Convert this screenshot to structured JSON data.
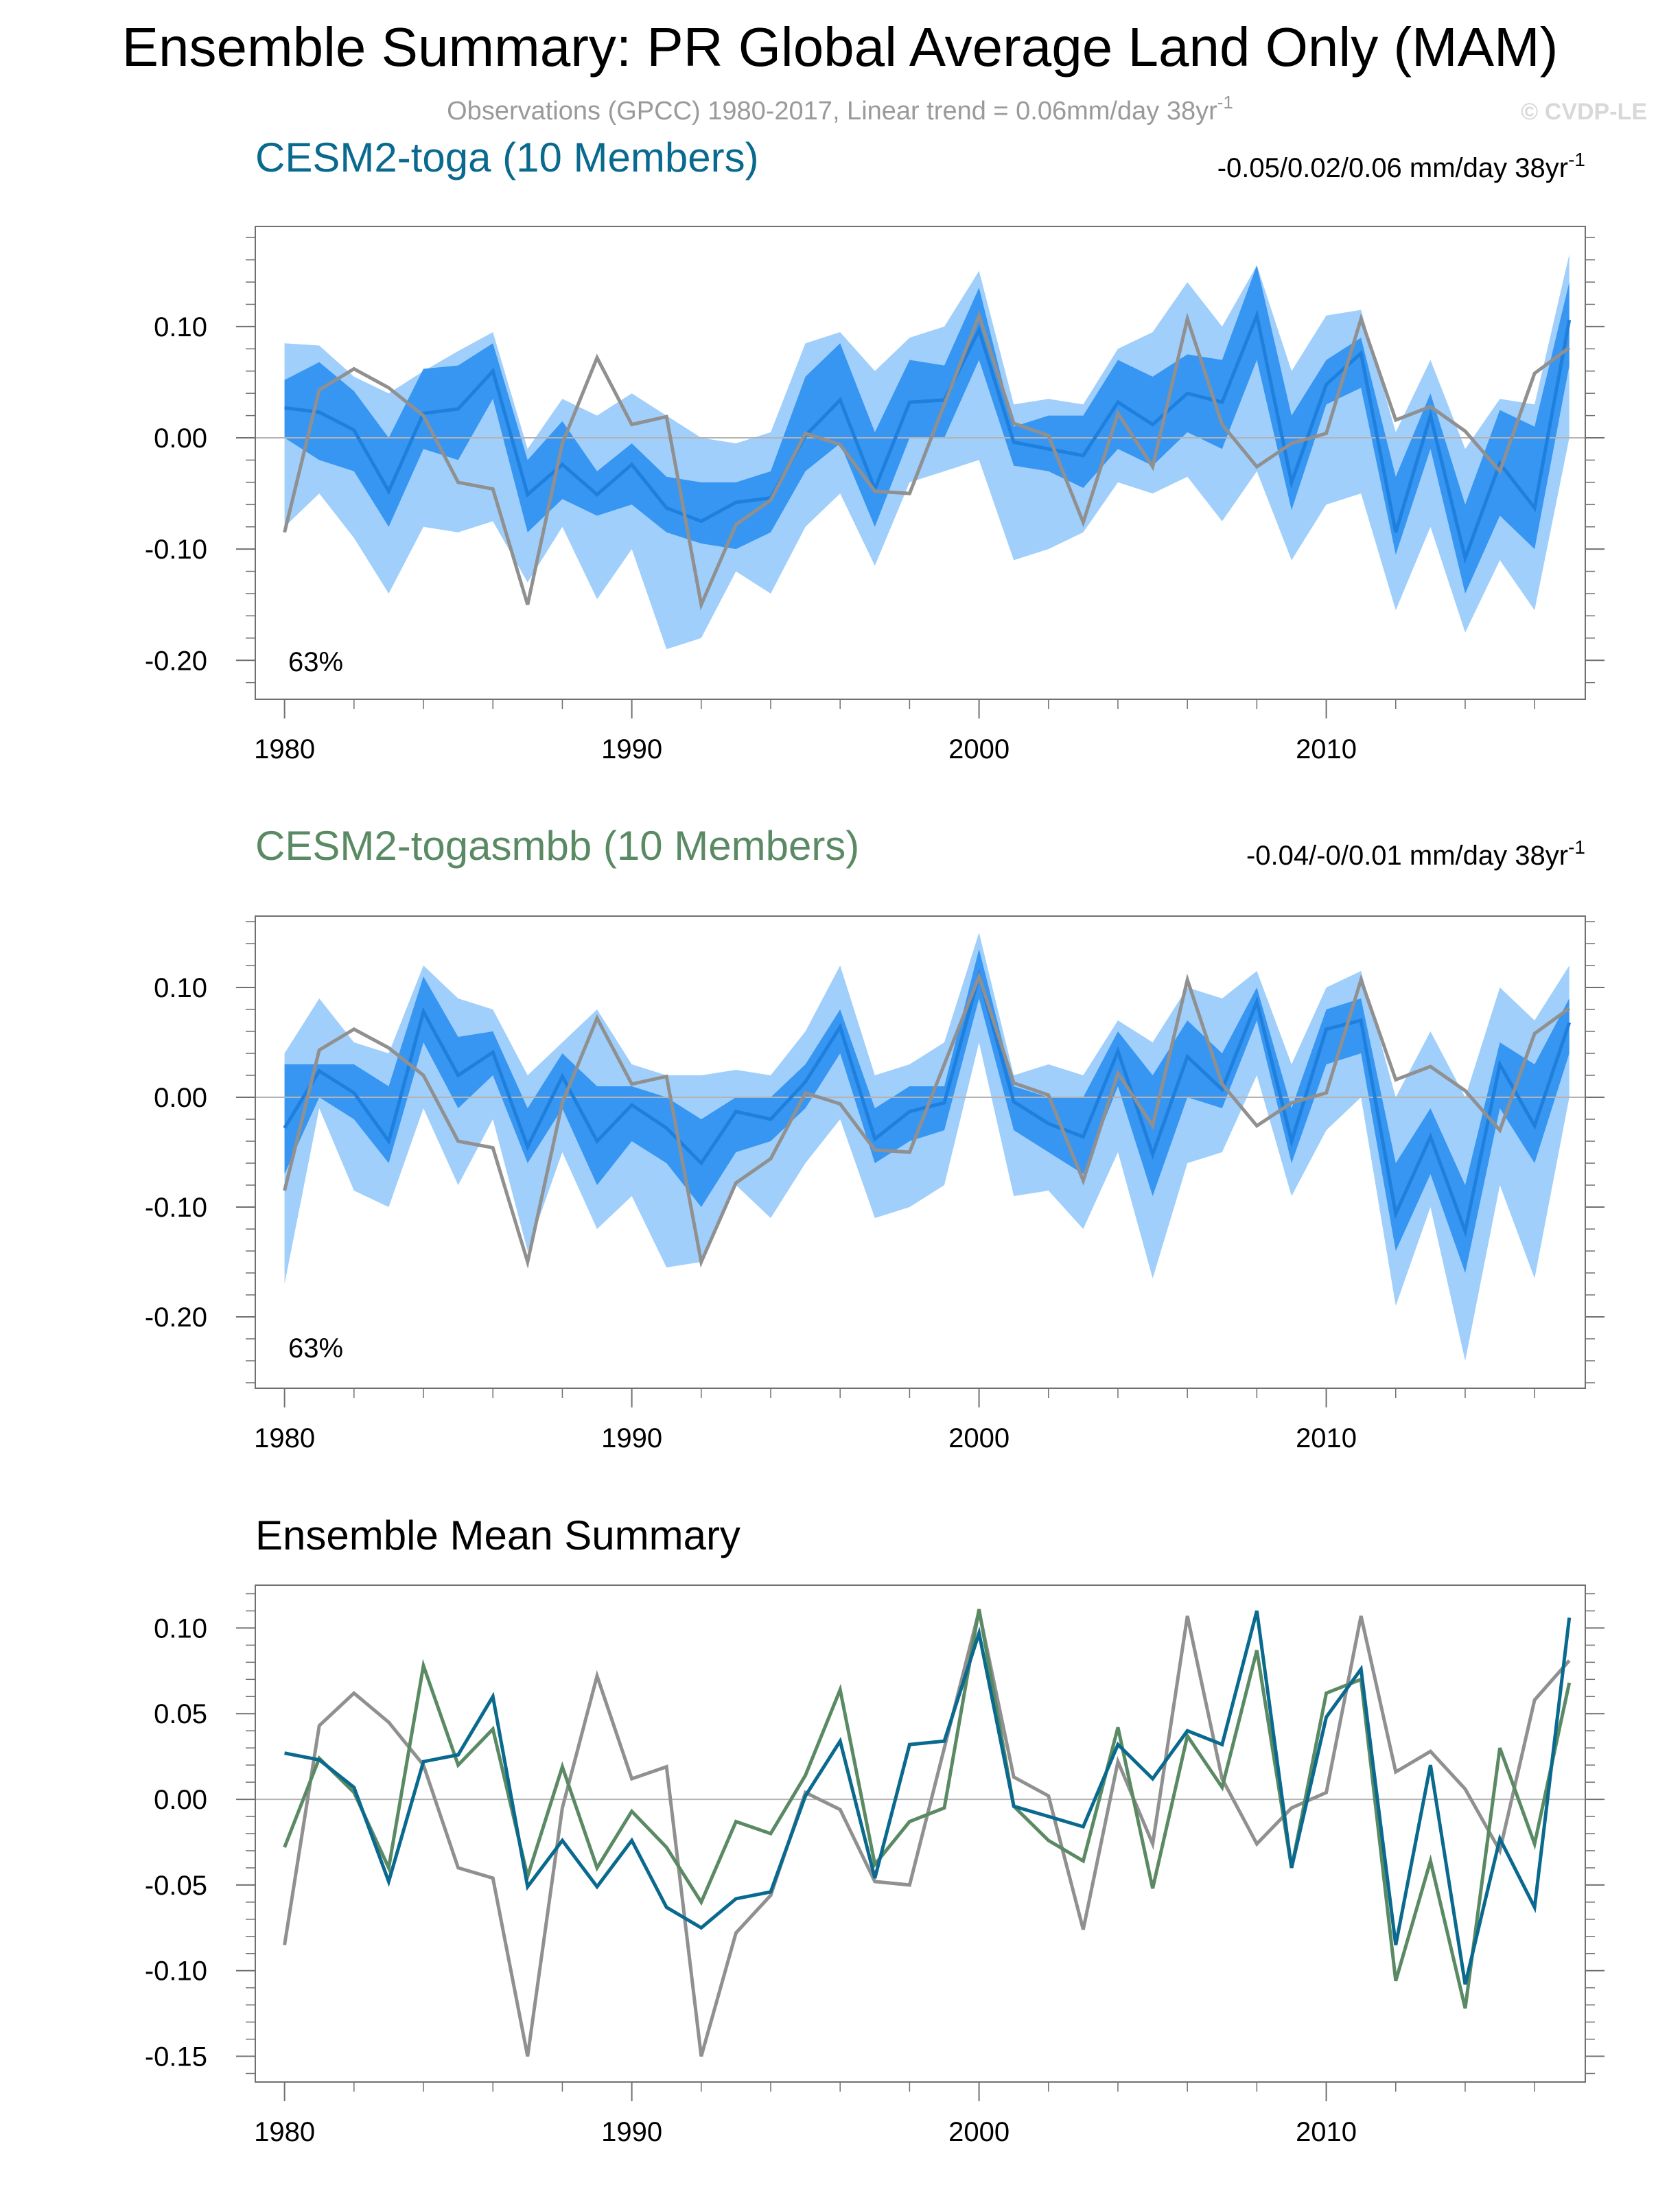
{
  "title": "Ensemble Summary: PR Global Average Land Only (MAM)",
  "subtitle": {
    "text": "Observations (GPCC) 1980-2017, Linear trend = 0.06mm/day 38yr",
    "superscript": "-1"
  },
  "copyright": "© CVDP-LE",
  "colors": {
    "band_outer": "#a0cffb",
    "band_inner": "#3796f2",
    "member_mean": "#1e7fdd",
    "observations": "#909090",
    "toga_color": "#09698e",
    "togasmbb_color": "#5a8a63",
    "text": "#000000",
    "subtitle_text": "#9a9a9a",
    "axis": "#707070",
    "zero_line": "#b3b3b3"
  },
  "panels": [
    {
      "title": "CESM2-toga (10 Members)",
      "trend_text": "-0.05/0.02/0.06 mm/day 38yr",
      "trend_superscript": "-1",
      "percent_label": "63%"
    },
    {
      "title": "CESM2-togasmbb (10 Members)",
      "trend_text": "-0.04/-0/0.01 mm/day 38yr",
      "trend_superscript": "-1",
      "percent_label": "63%"
    },
    {
      "title": "Ensemble Mean Summary"
    }
  ],
  "chart_data": [
    {
      "type": "area",
      "title": "CESM2-toga (10 Members)",
      "x": [
        1980,
        1981,
        1982,
        1983,
        1984,
        1985,
        1986,
        1987,
        1988,
        1989,
        1990,
        1991,
        1992,
        1993,
        1994,
        1995,
        1996,
        1997,
        1998,
        1999,
        2000,
        2001,
        2002,
        2003,
        2004,
        2005,
        2006,
        2007,
        2008,
        2009,
        2010,
        2011,
        2012,
        2013,
        2014,
        2015,
        2016,
        2017
      ],
      "ylim": [
        -0.235,
        0.19
      ],
      "yticks": [
        0.1,
        0.0,
        -0.1,
        -0.2
      ],
      "ytick_labels": [
        "0.10",
        "0.00",
        "-0.10",
        "-0.20"
      ],
      "xticks": [
        1980,
        1990,
        2000,
        2010
      ],
      "xtick_labels": [
        "1980",
        "1990",
        "2000",
        "2010"
      ],
      "series": [
        {
          "name": "10-90% range (upper)",
          "values": [
            0.085,
            0.083,
            0.055,
            0.04,
            0.06,
            0.078,
            0.095,
            -0.01,
            0.035,
            0.02,
            0.04,
            0.02,
            0.0,
            -0.005,
            0.005,
            0.085,
            0.095,
            0.06,
            0.09,
            0.1,
            0.15,
            0.03,
            0.035,
            0.03,
            0.08,
            0.095,
            0.14,
            0.1,
            0.155,
            0.06,
            0.11,
            0.115,
            0.005,
            0.07,
            -0.01,
            0.035,
            0.03,
            0.165
          ]
        },
        {
          "name": "10-90% range (lower)",
          "values": [
            -0.08,
            -0.05,
            -0.09,
            -0.14,
            -0.08,
            -0.085,
            -0.075,
            -0.13,
            -0.08,
            -0.145,
            -0.1,
            -0.19,
            -0.18,
            -0.12,
            -0.14,
            -0.08,
            -0.05,
            -0.115,
            -0.04,
            -0.03,
            -0.02,
            -0.11,
            -0.1,
            -0.085,
            -0.04,
            -0.05,
            -0.035,
            -0.075,
            -0.03,
            -0.11,
            -0.06,
            -0.05,
            -0.155,
            -0.08,
            -0.175,
            -0.11,
            -0.155,
            0.0
          ]
        },
        {
          "name": "1 sigma (upper)",
          "values": [
            0.052,
            0.068,
            0.042,
            0.0,
            0.062,
            0.065,
            0.085,
            -0.02,
            0.015,
            -0.03,
            -0.005,
            -0.035,
            -0.04,
            -0.04,
            -0.03,
            0.055,
            0.085,
            0.005,
            0.07,
            0.065,
            0.135,
            0.01,
            0.02,
            0.02,
            0.07,
            0.055,
            0.075,
            0.07,
            0.155,
            0.02,
            0.07,
            0.09,
            -0.035,
            0.04,
            -0.06,
            0.025,
            0.01,
            0.14
          ]
        },
        {
          "name": "1 sigma (lower)",
          "values": [
            0.0,
            -0.02,
            -0.03,
            -0.08,
            -0.01,
            -0.02,
            0.035,
            -0.085,
            -0.055,
            -0.07,
            -0.06,
            -0.085,
            -0.095,
            -0.1,
            -0.085,
            -0.03,
            -0.005,
            -0.08,
            0.0,
            0.0,
            0.07,
            -0.025,
            -0.03,
            -0.045,
            -0.01,
            -0.025,
            0.005,
            -0.01,
            0.07,
            -0.065,
            0.03,
            0.045,
            -0.105,
            -0.01,
            -0.14,
            -0.07,
            -0.1,
            0.065
          ]
        },
        {
          "name": "Ensemble mean",
          "values": [
            0.027,
            0.023,
            0.007,
            -0.048,
            0.022,
            0.026,
            0.06,
            -0.051,
            -0.024,
            -0.051,
            -0.024,
            -0.063,
            -0.075,
            -0.058,
            -0.054,
            0.002,
            0.034,
            -0.046,
            0.032,
            0.034,
            0.097,
            -0.004,
            -0.01,
            -0.016,
            0.032,
            0.012,
            0.04,
            0.032,
            0.11,
            -0.04,
            0.048,
            0.076,
            -0.085,
            0.02,
            -0.108,
            -0.023,
            -0.063,
            0.106
          ]
        },
        {
          "name": "Observations (GPCC)",
          "values": [
            -0.085,
            0.043,
            0.062,
            0.045,
            0.02,
            -0.04,
            -0.046,
            -0.15,
            -0.005,
            0.072,
            0.012,
            0.019,
            -0.15,
            -0.078,
            -0.056,
            0.004,
            -0.006,
            -0.048,
            -0.05,
            0.03,
            0.11,
            0.013,
            0.002,
            -0.076,
            0.022,
            -0.026,
            0.107,
            0.012,
            -0.026,
            -0.005,
            0.004,
            0.107,
            0.016,
            0.028,
            0.006,
            -0.03,
            0.058,
            0.081
          ]
        }
      ]
    },
    {
      "type": "area",
      "title": "CESM2-togasmbb (10 Members)",
      "x": [
        1980,
        1981,
        1982,
        1983,
        1984,
        1985,
        1986,
        1987,
        1988,
        1989,
        1990,
        1991,
        1992,
        1993,
        1994,
        1995,
        1996,
        1997,
        1998,
        1999,
        2000,
        2001,
        2002,
        2003,
        2004,
        2005,
        2006,
        2007,
        2008,
        2009,
        2010,
        2011,
        2012,
        2013,
        2014,
        2015,
        2016,
        2017
      ],
      "ylim": [
        -0.265,
        0.165
      ],
      "yticks": [
        0.1,
        0.0,
        -0.1,
        -0.2
      ],
      "ytick_labels": [
        "0.10",
        "0.00",
        "-0.10",
        "-0.20"
      ],
      "xticks": [
        1980,
        1990,
        2000,
        2010
      ],
      "xtick_labels": [
        "1980",
        "1990",
        "2000",
        "2010"
      ],
      "series": [
        {
          "name": "10-90% range (upper)",
          "values": [
            0.04,
            0.09,
            0.05,
            0.04,
            0.12,
            0.09,
            0.08,
            0.02,
            0.05,
            0.08,
            0.03,
            0.02,
            0.02,
            0.025,
            0.02,
            0.06,
            0.12,
            0.02,
            0.03,
            0.05,
            0.15,
            0.02,
            0.03,
            0.02,
            0.07,
            0.05,
            0.1,
            0.09,
            0.115,
            0.03,
            0.1,
            0.115,
            0.0,
            0.06,
            0.0,
            0.1,
            0.07,
            0.12
          ]
        },
        {
          "name": "10-90% range (lower)",
          "values": [
            -0.17,
            -0.01,
            -0.085,
            -0.1,
            -0.01,
            -0.08,
            -0.02,
            -0.14,
            -0.05,
            -0.12,
            -0.09,
            -0.155,
            -0.15,
            -0.08,
            -0.11,
            -0.06,
            -0.02,
            -0.11,
            -0.1,
            -0.08,
            0.05,
            -0.09,
            -0.085,
            -0.12,
            -0.05,
            -0.165,
            -0.06,
            -0.05,
            0.02,
            -0.09,
            -0.03,
            0.0,
            -0.19,
            -0.1,
            -0.24,
            -0.08,
            -0.165,
            0.0
          ]
        },
        {
          "name": "1 sigma (upper)",
          "values": [
            0.03,
            0.03,
            0.03,
            0.01,
            0.11,
            0.055,
            0.06,
            -0.01,
            0.04,
            0.01,
            0.01,
            0.0,
            -0.02,
            0.0,
            0.0,
            0.03,
            0.08,
            -0.01,
            0.01,
            0.01,
            0.135,
            0.01,
            0.0,
            0.0,
            0.06,
            0.02,
            0.07,
            0.04,
            0.1,
            -0.01,
            0.08,
            0.09,
            -0.06,
            -0.01,
            -0.08,
            0.05,
            0.03,
            0.09
          ]
        },
        {
          "name": "1 sigma (lower)",
          "values": [
            -0.07,
            0.0,
            -0.02,
            -0.06,
            0.05,
            -0.01,
            0.02,
            -0.06,
            -0.01,
            -0.08,
            -0.04,
            -0.06,
            -0.1,
            -0.05,
            -0.04,
            -0.01,
            0.04,
            -0.06,
            -0.04,
            -0.03,
            0.09,
            -0.03,
            -0.05,
            -0.07,
            0.01,
            -0.09,
            0.0,
            -0.01,
            0.07,
            -0.06,
            0.03,
            0.04,
            -0.14,
            -0.07,
            -0.16,
            -0.01,
            -0.06,
            0.04
          ]
        },
        {
          "name": "Ensemble mean",
          "values": [
            -0.028,
            0.024,
            0.004,
            -0.04,
            0.078,
            0.02,
            0.041,
            -0.045,
            0.019,
            -0.04,
            -0.007,
            -0.028,
            -0.06,
            -0.013,
            -0.02,
            0.014,
            0.064,
            -0.038,
            -0.013,
            -0.005,
            0.111,
            -0.004,
            -0.024,
            -0.036,
            0.042,
            -0.052,
            0.037,
            0.007,
            0.087,
            -0.04,
            0.062,
            0.07,
            -0.106,
            -0.036,
            -0.122,
            0.03,
            -0.026,
            0.068
          ]
        },
        {
          "name": "Observations (GPCC)",
          "values": [
            -0.085,
            0.043,
            0.062,
            0.045,
            0.02,
            -0.04,
            -0.046,
            -0.15,
            -0.005,
            0.072,
            0.012,
            0.019,
            -0.15,
            -0.078,
            -0.056,
            0.004,
            -0.006,
            -0.048,
            -0.05,
            0.03,
            0.11,
            0.013,
            0.002,
            -0.076,
            0.022,
            -0.026,
            0.107,
            0.012,
            -0.026,
            -0.005,
            0.004,
            0.107,
            0.016,
            0.028,
            0.006,
            -0.03,
            0.058,
            0.081
          ]
        }
      ]
    },
    {
      "type": "line",
      "title": "Ensemble Mean Summary",
      "x": [
        1980,
        1981,
        1982,
        1983,
        1984,
        1985,
        1986,
        1987,
        1988,
        1989,
        1990,
        1991,
        1992,
        1993,
        1994,
        1995,
        1996,
        1997,
        1998,
        1999,
        2000,
        2001,
        2002,
        2003,
        2004,
        2005,
        2006,
        2007,
        2008,
        2009,
        2010,
        2011,
        2012,
        2013,
        2014,
        2015,
        2016,
        2017
      ],
      "ylim": [
        -0.165,
        0.125
      ],
      "yticks": [
        0.1,
        0.05,
        0.0,
        -0.05,
        -0.1,
        -0.15
      ],
      "ytick_labels": [
        "0.10",
        "0.05",
        "0.00",
        "-0.05",
        "-0.10",
        "-0.15"
      ],
      "xticks": [
        1980,
        1990,
        2000,
        2010
      ],
      "xtick_labels": [
        "1980",
        "1990",
        "2000",
        "2010"
      ],
      "series": [
        {
          "name": "Observations (GPCC)",
          "values": [
            -0.085,
            0.043,
            0.062,
            0.045,
            0.02,
            -0.04,
            -0.046,
            -0.15,
            -0.005,
            0.072,
            0.012,
            0.019,
            -0.15,
            -0.078,
            -0.056,
            0.004,
            -0.006,
            -0.048,
            -0.05,
            0.03,
            0.11,
            0.013,
            0.002,
            -0.076,
            0.022,
            -0.026,
            0.107,
            0.012,
            -0.026,
            -0.005,
            0.004,
            0.107,
            0.016,
            0.028,
            0.006,
            -0.03,
            0.058,
            0.081
          ]
        },
        {
          "name": "CESM2-togasmbb",
          "values": [
            -0.028,
            0.024,
            0.004,
            -0.04,
            0.078,
            0.02,
            0.041,
            -0.045,
            0.019,
            -0.04,
            -0.007,
            -0.028,
            -0.06,
            -0.013,
            -0.02,
            0.014,
            0.064,
            -0.038,
            -0.013,
            -0.005,
            0.111,
            -0.004,
            -0.024,
            -0.036,
            0.042,
            -0.052,
            0.037,
            0.007,
            0.087,
            -0.04,
            0.062,
            0.07,
            -0.106,
            -0.036,
            -0.122,
            0.03,
            -0.026,
            0.068
          ]
        },
        {
          "name": "CESM2-toga",
          "values": [
            0.027,
            0.023,
            0.007,
            -0.048,
            0.022,
            0.026,
            0.06,
            -0.051,
            -0.024,
            -0.051,
            -0.024,
            -0.063,
            -0.075,
            -0.058,
            -0.054,
            0.002,
            0.034,
            -0.046,
            0.032,
            0.034,
            0.097,
            -0.004,
            -0.01,
            -0.016,
            0.032,
            0.012,
            0.04,
            0.032,
            0.11,
            -0.04,
            0.048,
            0.076,
            -0.085,
            0.02,
            -0.108,
            -0.023,
            -0.063,
            0.106
          ]
        }
      ]
    }
  ]
}
